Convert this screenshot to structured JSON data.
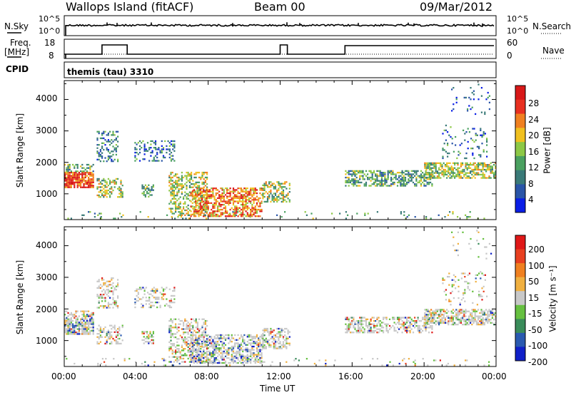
{
  "header": {
    "station": "Wallops Island (fitACF)",
    "beam": "Beam 00",
    "date": "09/Mar/2012"
  },
  "left_labels": {
    "nsky": "N.Sky",
    "freq": "Freq.",
    "freq_unit": "[MHz]",
    "cpid": "CPID"
  },
  "right_labels": {
    "nsearch": "N.Search",
    "nave": "Nave"
  },
  "cpid_text": "themis (tau) 3310",
  "noise_panel": {
    "left_ticks": [
      "10^5",
      "10^0"
    ],
    "right_ticks": [
      "10^5",
      "10^0"
    ]
  },
  "freq_panel": {
    "left_ticks": [
      "18",
      "8"
    ],
    "right_ticks": [
      "60",
      "0"
    ]
  },
  "chart_data": [
    {
      "type": "heatmap",
      "name": "power",
      "ylabel": "Slant Range [km]",
      "yticks": [
        "1000",
        "2000",
        "3000",
        "4000"
      ],
      "xticks": [
        "00:00",
        "04:00",
        "08:00",
        "12:00",
        "16:00",
        "20:00",
        "00:00"
      ],
      "xlim_hours": [
        0,
        24
      ],
      "ylim_km": [
        180,
        4600
      ],
      "colorbar": {
        "label": "Power [dB]",
        "ticks": [
          "4",
          "8",
          "12",
          "16",
          "20",
          "24",
          "28"
        ],
        "colors": [
          "#0a1ee6",
          "#2a55a8",
          "#3a7a78",
          "#4aa060",
          "#8dc846",
          "#f0c020",
          "#f08020",
          "#e83020",
          "#d81818"
        ]
      }
    },
    {
      "type": "heatmap",
      "name": "velocity",
      "ylabel": "Slant Range [km]",
      "yticks": [
        "1000",
        "2000",
        "3000",
        "4000"
      ],
      "xticks": [
        "00:00",
        "04:00",
        "08:00",
        "12:00",
        "16:00",
        "20:00",
        "00:00"
      ],
      "xlabel": "Time UT",
      "xlim_hours": [
        0,
        24
      ],
      "ylim_km": [
        180,
        4600
      ],
      "colorbar": {
        "label": "Velocity [m s⁻¹]",
        "ticks": [
          "200",
          "100",
          "50",
          "15",
          "-15",
          "-50",
          "-100",
          "-200"
        ],
        "colors": [
          "#1020c8",
          "#2a5ab0",
          "#3a8c5a",
          "#66c040",
          "#c8c8c8",
          "#f0b040",
          "#f08020",
          "#e84020",
          "#e01818"
        ]
      }
    }
  ]
}
